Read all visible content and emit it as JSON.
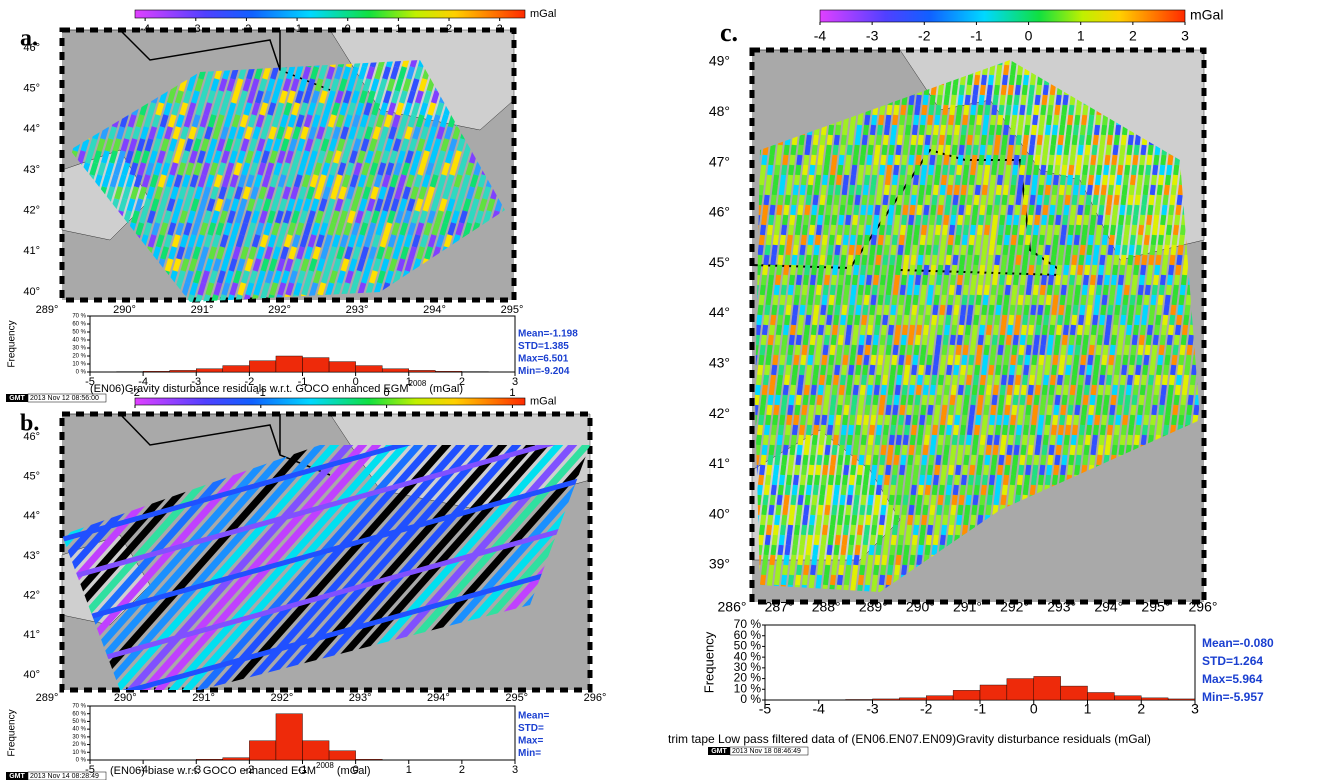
{
  "chart_data": [
    {
      "type": "histogram",
      "panel_label": "a.",
      "colorbar": {
        "unit": "mGal",
        "clim": [
          -4.2,
          3.5
        ],
        "ticks": [
          -4,
          -3,
          -2,
          -1,
          0,
          1,
          2,
          3
        ]
      },
      "map": {
        "lat_ticks": [
          "46°",
          "45°",
          "44°",
          "43°",
          "42°",
          "41°",
          "40°"
        ],
        "lon_ticks": [
          "289°",
          "290°",
          "291°",
          "292°",
          "293°",
          "294°",
          "295°"
        ]
      },
      "ylabel": "Frequency",
      "bins": [
        -5,
        -4.5,
        -4,
        -3.5,
        -3,
        -2.5,
        -2,
        -1.5,
        -1,
        -0.5,
        0,
        0.5,
        1,
        1.5,
        2,
        2.5,
        3
      ],
      "values": [
        0,
        0.5,
        1,
        2,
        4,
        8,
        14,
        20,
        18,
        13,
        8,
        4,
        2,
        1,
        0.5,
        0
      ],
      "color": "#ee2a0a",
      "xlim": [
        -5,
        3
      ],
      "xticks": [
        -5,
        -4,
        -3,
        -2,
        -1,
        0,
        1,
        2,
        3
      ],
      "ylim": [
        0,
        70
      ],
      "yticks": [
        {
          "value": 0,
          "label": "0 %"
        },
        {
          "value": 10,
          "label": "10 %"
        },
        {
          "value": 20,
          "label": "20 %"
        },
        {
          "value": 30,
          "label": "30 %"
        },
        {
          "value": 40,
          "label": "40 %"
        },
        {
          "value": 50,
          "label": "50 %"
        },
        {
          "value": 60,
          "label": "60 %"
        },
        {
          "value": 70,
          "label": "70 %"
        }
      ],
      "stats": [
        "Mean=-1.198",
        "STD=1.385",
        "Max=6.501",
        "Min=-9.204"
      ],
      "caption": [
        "(EN06)Gravity disturbance residuals w.r.t. GOCO enhanced EGM",
        "2008",
        " (mGal)"
      ],
      "stamp": [
        "GMT",
        "2013 Nov 12 08:56:00"
      ]
    },
    {
      "type": "histogram",
      "panel_label": "b.",
      "colorbar": {
        "unit": "mGal",
        "clim": [
          -2,
          1.1
        ],
        "ticks": [
          -2,
          -1,
          0,
          1
        ]
      },
      "map": {
        "lat_ticks": [
          "46°",
          "45°",
          "44°",
          "43°",
          "42°",
          "41°",
          "40°"
        ],
        "lon_ticks": [
          "289°",
          "290°",
          "291°",
          "292°",
          "293°",
          "294°",
          "295°",
          "296°"
        ]
      },
      "ylabel": "Frequency",
      "bins": [
        -3,
        -2.5,
        -2,
        -1.5,
        -1,
        -0.5,
        0,
        0.5
      ],
      "values": [
        1,
        3,
        25,
        60,
        25,
        12,
        1
      ],
      "color": "#ee2a0a",
      "xlim": [
        -5,
        3
      ],
      "xticks": [
        -5,
        -4,
        -3,
        -2,
        -1,
        0,
        1,
        2,
        3
      ],
      "ylim": [
        0,
        70
      ],
      "yticks": [
        {
          "value": 0,
          "label": "0 %"
        },
        {
          "value": 10,
          "label": "10 %"
        },
        {
          "value": 20,
          "label": "20 %"
        },
        {
          "value": 30,
          "label": "30 %"
        },
        {
          "value": 40,
          "label": "40 %"
        },
        {
          "value": 50,
          "label": "50 %"
        },
        {
          "value": 60,
          "label": "60 %"
        },
        {
          "value": 70,
          "label": "70 %"
        }
      ],
      "stats": [
        "Mean=",
        "STD=",
        "Max=",
        "Min="
      ],
      "caption": [
        "(EN06) biase w.r.t. GOCO enhanced EGM",
        "2008",
        " (mGal)"
      ],
      "stamp": [
        "GMT",
        "2013 Nov 14 08:28:49"
      ]
    },
    {
      "type": "histogram",
      "panel_label": "c.",
      "colorbar": {
        "unit": "mGal",
        "clim": [
          -4,
          3
        ],
        "ticks": [
          -4,
          -3,
          -2,
          -1,
          0,
          1,
          2,
          3
        ]
      },
      "map": {
        "lat_ticks": [
          "49°",
          "48°",
          "47°",
          "46°",
          "45°",
          "44°",
          "43°",
          "42°",
          "41°",
          "40°",
          "39°"
        ],
        "lon_ticks": [
          "286°",
          "287°",
          "288°",
          "289°",
          "290°",
          "291°",
          "292°",
          "293°",
          "294°",
          "295°",
          "296°"
        ]
      },
      "ylabel": "Frequency",
      "bins": [
        -5,
        -4.5,
        -4,
        -3.5,
        -3,
        -2.5,
        -2,
        -1.5,
        -1,
        -0.5,
        0,
        0.5,
        1,
        1.5,
        2,
        2.5,
        3
      ],
      "values": [
        0,
        0,
        0,
        0.5,
        1,
        2,
        4,
        9,
        14,
        20,
        22,
        13,
        7,
        4,
        2,
        1
      ],
      "color": "#ee2a0a",
      "xlim": [
        -5,
        3
      ],
      "xticks": [
        -5,
        -4,
        -3,
        -2,
        -1,
        0,
        1,
        2,
        3
      ],
      "ylim": [
        0,
        70
      ],
      "yticks": [
        {
          "value": 0,
          "label": "0 %"
        },
        {
          "value": 10,
          "label": "10 %"
        },
        {
          "value": 20,
          "label": "20 %"
        },
        {
          "value": 30,
          "label": "30 %"
        },
        {
          "value": 40,
          "label": "40 %"
        },
        {
          "value": 50,
          "label": "50 %"
        },
        {
          "value": 60,
          "label": "60 %"
        },
        {
          "value": 70,
          "label": "70 %"
        }
      ],
      "stats": [
        "Mean=-0.080",
        "STD=1.264",
        "Max=5.964",
        "Min=-5.957"
      ],
      "caption": [
        "trim tape Low pass filtered data of (EN06.EN07.EN09)Gravity disturbance residuals (mGal)"
      ],
      "stamp": [
        "GMT",
        "2013 Nov 18 08:46:49"
      ]
    }
  ]
}
